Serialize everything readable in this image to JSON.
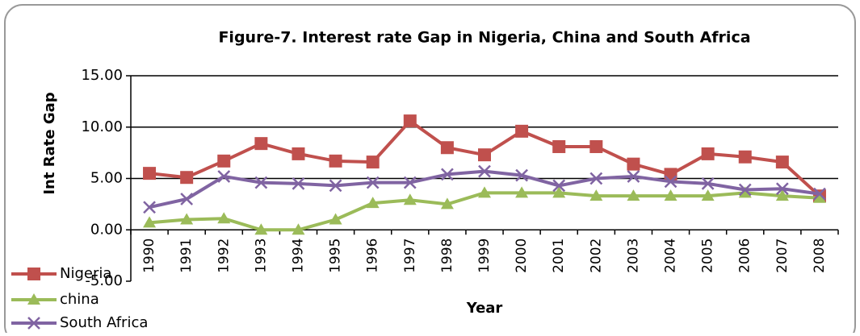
{
  "chart_data": {
    "type": "line",
    "title": "Figure-7. Interest rate Gap in Nigeria, China and South Africa",
    "xlabel": "Year",
    "ylabel": "Int Rate Gap",
    "categories": [
      "1990",
      "1991",
      "1992",
      "1993",
      "1994",
      "1995",
      "1996",
      "1997",
      "1998",
      "1999",
      "2000",
      "2001",
      "2002",
      "2003",
      "2004",
      "2005",
      "2006",
      "2007",
      "2008"
    ],
    "series": [
      {
        "name": "Nigeria",
        "color": "#c0504d",
        "marker": "square",
        "values": [
          5.5,
          5.1,
          6.7,
          8.4,
          7.4,
          6.7,
          6.6,
          10.6,
          8.0,
          7.3,
          9.6,
          8.1,
          8.1,
          6.4,
          5.4,
          7.4,
          7.1,
          6.6,
          3.3
        ]
      },
      {
        "name": "china",
        "color": "#9bbb59",
        "marker": "triangle",
        "values": [
          0.7,
          1.0,
          1.1,
          0,
          0,
          1.0,
          2.6,
          2.9,
          2.5,
          3.6,
          3.6,
          3.6,
          3.3,
          3.3,
          3.3,
          3.3,
          3.6,
          3.3,
          3.1
        ]
      },
      {
        "name": "South Africa",
        "color": "#8064a2",
        "marker": "x",
        "values": [
          2.2,
          3.0,
          5.2,
          4.6,
          4.5,
          4.3,
          4.6,
          4.6,
          5.4,
          5.7,
          5.3,
          4.3,
          5.0,
          5.2,
          4.7,
          4.5,
          3.9,
          4.0,
          3.5
        ]
      }
    ],
    "ylim": [
      -5,
      15
    ],
    "yticks": [
      {
        "value": -5,
        "label": "-5.00"
      },
      {
        "value": 0,
        "label": "0.00"
      },
      {
        "value": 5,
        "label": "5.00"
      },
      {
        "value": 10,
        "label": "10.00"
      },
      {
        "value": 15,
        "label": "15.00"
      }
    ],
    "grid": true,
    "legend": "bottom-left"
  }
}
